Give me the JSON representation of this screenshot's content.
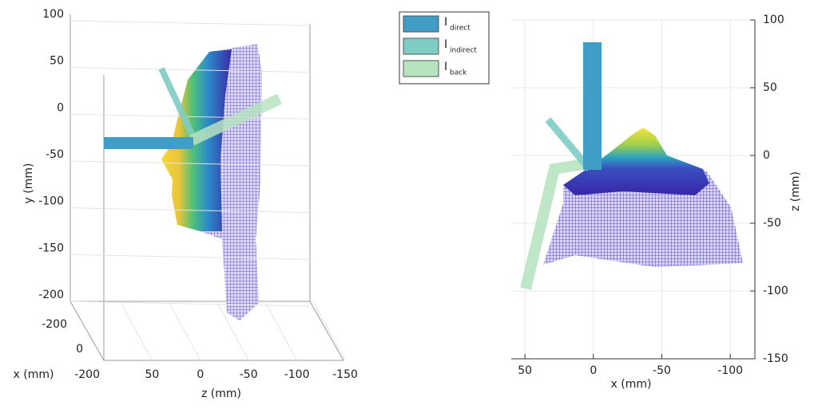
{
  "chart_data": [
    {
      "type": "surface3d",
      "xlabel": "x (mm)",
      "ylabel": "y (mm)",
      "zlabel": "z (mm)",
      "ylim": [
        -200,
        100
      ],
      "yticks": [
        100,
        50,
        0,
        -50,
        -100,
        -150,
        -200
      ],
      "zlim": [
        100,
        -150
      ],
      "zticks": [
        50,
        0,
        -50,
        -100,
        -150
      ],
      "xticks": [
        -200,
        0,
        -200
      ],
      "grid": true,
      "series": [
        {
          "name": "I",
          "subscript": "direct",
          "color": "#3f9dc6"
        },
        {
          "name": "I",
          "subscript": "indirect",
          "color": "#7fcdc4"
        },
        {
          "name": "I",
          "subscript": "back",
          "color": "#b8e3c1"
        }
      ]
    },
    {
      "type": "surface",
      "xlabel": "x (mm)",
      "ylabel": "z (mm)",
      "xlim": [
        60,
        -118
      ],
      "xticks": [
        50,
        0,
        -50,
        -100
      ],
      "ylim": [
        -150,
        100
      ],
      "yticks": [
        100,
        50,
        0,
        -50,
        -100,
        -150
      ],
      "grid": true
    }
  ]
}
